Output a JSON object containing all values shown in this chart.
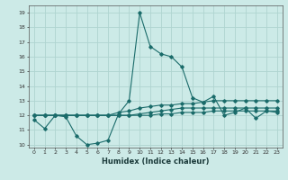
{
  "title": "",
  "xlabel": "Humidex (Indice chaleur)",
  "ylabel": "",
  "background_color": "#cceae7",
  "grid_color": "#afd4d0",
  "line_color": "#1a6b6a",
  "xlim": [
    -0.5,
    23.5
  ],
  "ylim": [
    9.8,
    19.5
  ],
  "xticks": [
    0,
    1,
    2,
    3,
    4,
    5,
    6,
    7,
    8,
    9,
    10,
    11,
    12,
    13,
    14,
    15,
    16,
    17,
    18,
    19,
    20,
    21,
    22,
    23
  ],
  "yticks": [
    10,
    11,
    12,
    13,
    14,
    15,
    16,
    17,
    18,
    19
  ],
  "line1_x": [
    0,
    1,
    2,
    3,
    4,
    5,
    6,
    7,
    8,
    9,
    10,
    11,
    12,
    13,
    14,
    15,
    16,
    17,
    18,
    19,
    20,
    21,
    22,
    23
  ],
  "line1_y": [
    11.7,
    11.1,
    12.0,
    11.9,
    10.6,
    10.0,
    10.1,
    10.3,
    12.1,
    13.0,
    19.0,
    16.7,
    16.2,
    16.0,
    15.3,
    13.2,
    12.9,
    13.3,
    12.0,
    12.2,
    12.5,
    11.8,
    12.3,
    12.2
  ],
  "line2_x": [
    0,
    1,
    2,
    3,
    4,
    5,
    6,
    7,
    8,
    9,
    10,
    11,
    12,
    13,
    14,
    15,
    16,
    17,
    18,
    19,
    20,
    21,
    22,
    23
  ],
  "line2_y": [
    12.0,
    12.0,
    12.0,
    12.0,
    12.0,
    12.0,
    12.0,
    12.0,
    12.0,
    12.0,
    12.0,
    12.0,
    12.1,
    12.1,
    12.2,
    12.2,
    12.2,
    12.3,
    12.3,
    12.3,
    12.3,
    12.3,
    12.3,
    12.3
  ],
  "line3_x": [
    0,
    1,
    2,
    3,
    4,
    5,
    6,
    7,
    8,
    9,
    10,
    11,
    12,
    13,
    14,
    15,
    16,
    17,
    18,
    19,
    20,
    21,
    22,
    23
  ],
  "line3_y": [
    12.0,
    12.0,
    12.0,
    12.0,
    12.0,
    12.0,
    12.0,
    12.0,
    12.2,
    12.3,
    12.5,
    12.6,
    12.7,
    12.7,
    12.8,
    12.8,
    12.9,
    13.0,
    13.0,
    13.0,
    13.0,
    13.0,
    13.0,
    13.0
  ],
  "line4_x": [
    0,
    1,
    2,
    3,
    4,
    5,
    6,
    7,
    8,
    9,
    10,
    11,
    12,
    13,
    14,
    15,
    16,
    17,
    18,
    19,
    20,
    21,
    22,
    23
  ],
  "line4_y": [
    12.0,
    12.0,
    12.0,
    12.0,
    12.0,
    12.0,
    12.0,
    12.0,
    12.0,
    12.0,
    12.1,
    12.2,
    12.3,
    12.4,
    12.5,
    12.5,
    12.5,
    12.5,
    12.5,
    12.5,
    12.5,
    12.5,
    12.5,
    12.5
  ],
  "marker_size": 1.8,
  "line_width": 0.8,
  "tick_fontsize": 4.5,
  "label_fontsize": 6.0
}
